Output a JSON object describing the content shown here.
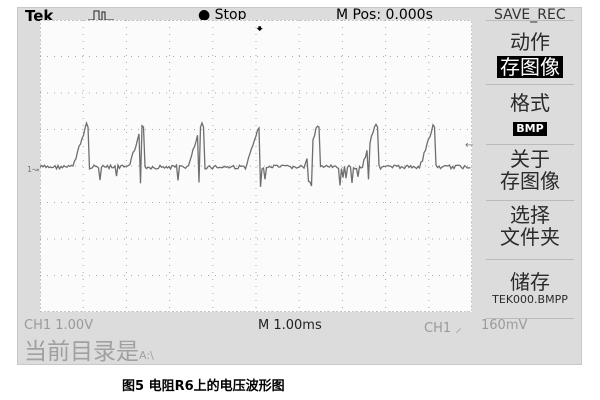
{
  "header": {
    "brand": "Tek",
    "trigger_icon": "pulse-icon",
    "run_state": "Stop",
    "m_pos": "M Pos: 0.000s",
    "menu_title": "SAVE_REC"
  },
  "menu": {
    "action_label": "动作",
    "action_value": "存图像",
    "format_label": "格式",
    "format_value": "BMP",
    "about_line1": "关于",
    "about_line2": "存图像",
    "select_line1": "选择",
    "select_line2": "文件夹",
    "save_label": "储存",
    "save_file": "TEK000.BMPP"
  },
  "status": {
    "ch1_scale": "CH1  1.00V",
    "timebase": "M 1.00ms",
    "trigger_source": "CH1",
    "trigger_level": "160mV",
    "current_dir_label": "当前目录是",
    "current_dir": "A:\\"
  },
  "caption": "图5  电阻R6上的电压波形图",
  "colors": {
    "trace": "#6e6e6e",
    "panel": "#dcdcdc",
    "highlight": "#000000"
  }
}
